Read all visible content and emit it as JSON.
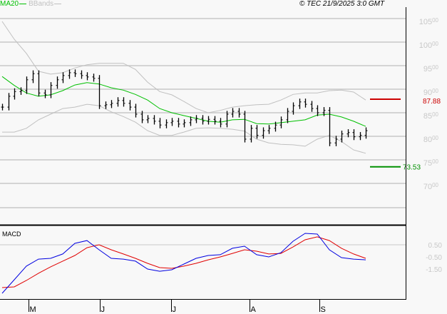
{
  "header": {
    "ma_label": "MA20",
    "bb_label": "BBands",
    "copyright": "© TEC 21/9/2025 3:0 GMT"
  },
  "colors": {
    "ma": "#00c000",
    "bands": "#c0c0c0",
    "bars": "#000000",
    "macd": "#0000e0",
    "signal": "#e00000",
    "resistance": "#cc0000",
    "support": "#009000"
  },
  "chart_data": [
    {
      "type": "line",
      "title": "Price (OHLC bars) with MA20 and Bollinger Bands",
      "y_ticks": [
        "105.00",
        "100.00",
        "95.00",
        "90.00",
        "85.00",
        "80.00",
        "75.00",
        "70.00"
      ],
      "ylim": [
        65,
        107
      ],
      "x_ticks": [
        "M",
        "J",
        "J",
        "A",
        "S"
      ],
      "x_tick_bar_index": [
        4.4,
        16.1,
        27.9,
        40.8,
        52.4
      ],
      "grid": true,
      "close": [
        86.2,
        88.5,
        89.5,
        89.7,
        92.0,
        93.3,
        89.2,
        88.8,
        90.8,
        92.0,
        92.9,
        93.5,
        93.3,
        92.9,
        92.6,
        92.3,
        86.5,
        86.7,
        87.0,
        87.6,
        87.0,
        86.2,
        84.7,
        83.5,
        83.8,
        83.2,
        82.4,
        82.9,
        83.2,
        82.6,
        82.9,
        83.5,
        83.8,
        83.2,
        83.6,
        83.2,
        82.6,
        84.7,
        85.3,
        84.7,
        79.4,
        81.7,
        80.2,
        81.2,
        81.7,
        82.4,
        83.5,
        85.3,
        86.5,
        87.3,
        86.8,
        85.9,
        85.0,
        85.5,
        78.6,
        79.4,
        80.5,
        80.8,
        79.9,
        80.2,
        81.2
      ],
      "ma20_every_2_bars": [
        92.7,
        90.8,
        89.2,
        88.5,
        88.8,
        89.7,
        90.9,
        91.4,
        91.1,
        90.3,
        89.8,
        88.9,
        87.7,
        85.9,
        85.0,
        84.4,
        83.8,
        83.2,
        83.0,
        83.5,
        83.6,
        82.7,
        82.6,
        82.9,
        83.2,
        83.5,
        84.5,
        84.7,
        84.1,
        83.2,
        82.1
      ],
      "bb_upper_every_2_bars": [
        104.4,
        100.6,
        97.6,
        93.8,
        93.2,
        93.5,
        94.5,
        95.2,
        95.5,
        95.5,
        95.5,
        94.2,
        91.5,
        89.5,
        88.8,
        87.4,
        85.9,
        85.0,
        85.5,
        86.2,
        86.5,
        86.7,
        86.8,
        87.7,
        88.9,
        89.2,
        89.2,
        89.7,
        89.8,
        89.4,
        87.7
      ],
      "bb_lower_every_2_bars": [
        80.9,
        80.9,
        81.7,
        83.5,
        84.7,
        85.9,
        86.2,
        86.8,
        86.5,
        85.2,
        84.2,
        83.0,
        81.2,
        80.2,
        80.2,
        80.9,
        81.7,
        81.8,
        81.7,
        81.5,
        81.1,
        79.4,
        78.6,
        78.3,
        78.2,
        77.9,
        79.4,
        80.2,
        78.9,
        77.1,
        76.4
      ],
      "levels": [
        {
          "label": "87.88",
          "value": 87.88,
          "color": "#cc0000"
        },
        {
          "label": "73.53",
          "value": 73.53,
          "color": "#009000"
        }
      ]
    },
    {
      "type": "line",
      "title": "MACD",
      "y_ticks": [
        "0.50",
        "-0.50",
        "-1.50"
      ],
      "y_tick_values": [
        0.5,
        -0.5,
        -1.5
      ],
      "macd_every_2_bars": [
        -3.5,
        -2.38,
        -1.26,
        -0.68,
        -0.62,
        -0.26,
        0.62,
        0.85,
        0.09,
        -0.62,
        -0.68,
        -0.85,
        -1.5,
        -1.68,
        -1.56,
        -1.09,
        -0.62,
        -0.38,
        -0.32,
        0.21,
        0.38,
        -0.32,
        -0.5,
        -0.15,
        0.79,
        1.44,
        1.38,
        0.09,
        -0.56,
        -0.68,
        -0.74
      ],
      "signal_every_2_bars": [
        -3.03,
        -2.97,
        -2.44,
        -1.85,
        -1.32,
        -0.85,
        -0.38,
        0.26,
        0.5,
        0.09,
        -0.26,
        -0.62,
        -1.03,
        -1.38,
        -1.44,
        -1.26,
        -1.03,
        -0.74,
        -0.5,
        -0.21,
        0.09,
        -0.03,
        -0.26,
        -0.21,
        0.32,
        0.91,
        1.15,
        0.85,
        0.21,
        -0.26,
        -0.62
      ]
    }
  ]
}
